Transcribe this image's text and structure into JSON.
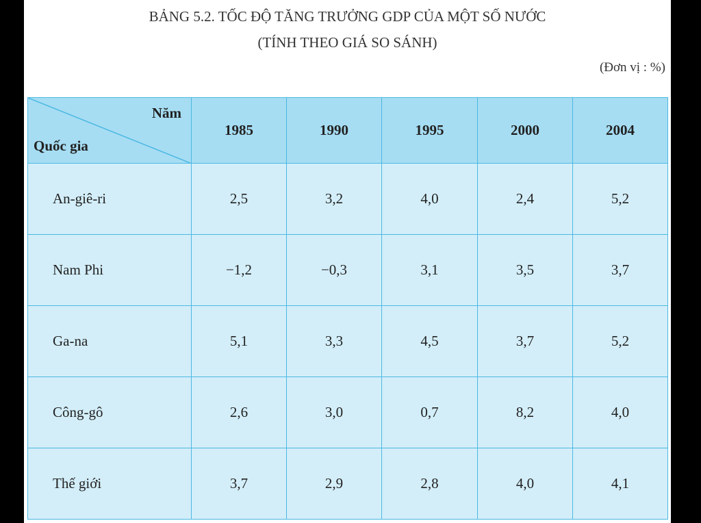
{
  "header": {
    "title": "BẢNG 5.2. TỐC ĐỘ TĂNG TRƯỞNG GDP CỦA MỘT SỐ NƯỚC",
    "subtitle": "(TÍNH THEO GIÁ SO SÁNH)",
    "unit": "(Đơn vị : %)"
  },
  "table": {
    "corner_top": "Năm",
    "corner_bottom": "Quốc gia",
    "columns": [
      "1985",
      "1990",
      "1995",
      "2000",
      "2004"
    ],
    "rows": [
      [
        "An-giê-ri",
        "2,5",
        "3,2",
        "4,0",
        "2,4",
        "5,2"
      ],
      [
        "Nam Phi",
        "−1,2",
        "−0,3",
        "3,1",
        "3,5",
        "3,7"
      ],
      [
        "Ga-na",
        "5,1",
        "3,3",
        "4,5",
        "3,7",
        "5,2"
      ],
      [
        "Công-gô",
        "2,6",
        "3,0",
        "0,7",
        "8,2",
        "4,0"
      ],
      [
        "Thế giới",
        "3,7",
        "2,9",
        "2,8",
        "4,0",
        "4,1"
      ]
    ]
  }
}
